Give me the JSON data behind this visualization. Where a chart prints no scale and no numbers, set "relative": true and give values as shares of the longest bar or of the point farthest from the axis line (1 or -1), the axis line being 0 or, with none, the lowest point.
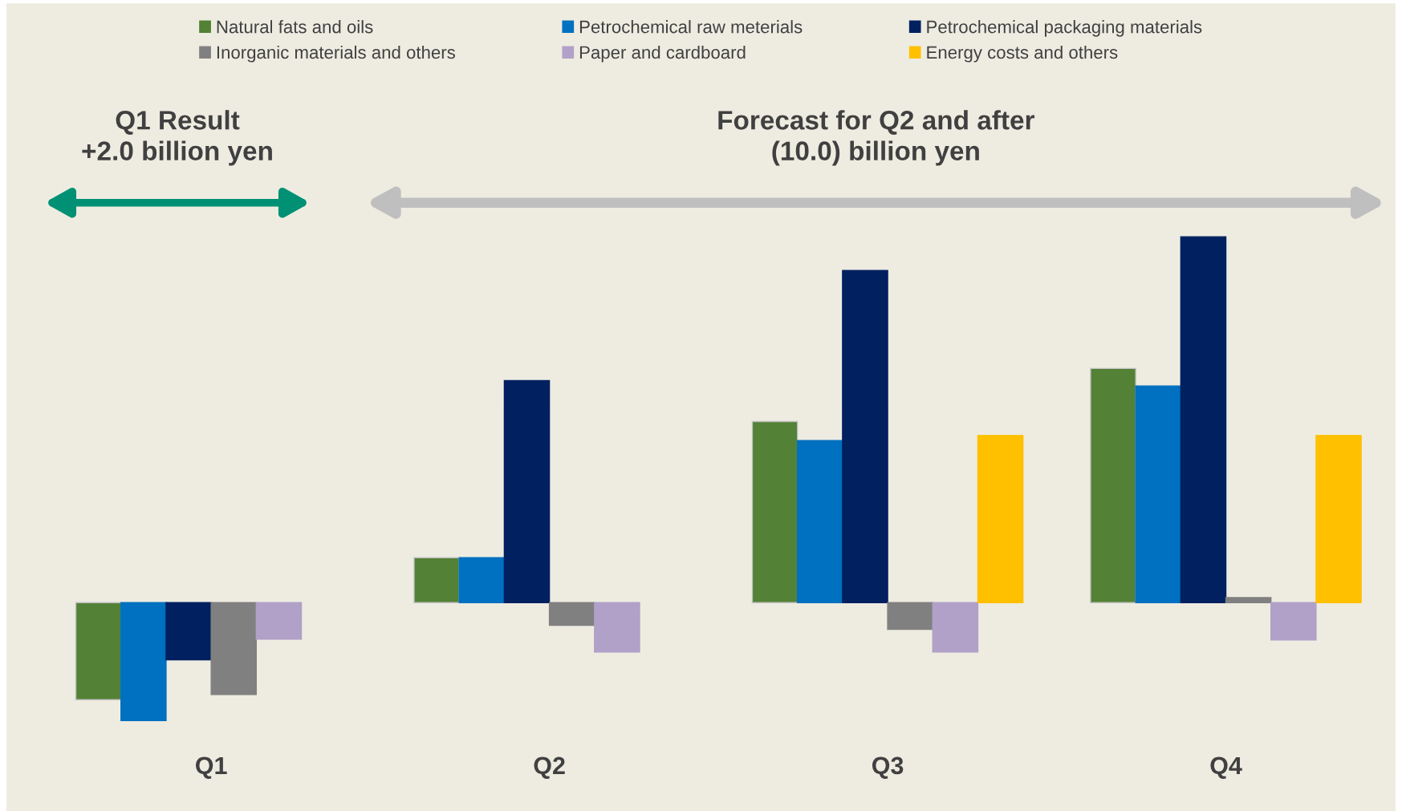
{
  "chart_data": {
    "type": "bar",
    "relative": true,
    "categories": [
      "Q1",
      "Q2",
      "Q3",
      "Q4"
    ],
    "series": [
      {
        "name": "Natural fats and oils",
        "color": "#538135",
        "values": [
          -0.265,
          0.123,
          0.495,
          0.64
        ]
      },
      {
        "name": "Petrochemical raw meterials",
        "color": "#0070c0",
        "values": [
          -0.322,
          0.123,
          0.443,
          0.592
        ]
      },
      {
        "name": "Petrochemical packaging materials",
        "color": "#002060",
        "values": [
          -0.156,
          0.607,
          0.908,
          1
        ]
      },
      {
        "name": "Inorganic materials and others",
        "color": "#808080",
        "values": [
          -0.251,
          -0.062,
          -0.073,
          0.014
        ]
      },
      {
        "name": "Paper and cardboard",
        "color": "#b1a0c7",
        "values": [
          -0.1,
          -0.135,
          -0.135,
          -0.102
        ]
      },
      {
        "name": "Energy costs and others",
        "color": "#ffc000",
        "values": [
          null,
          null,
          0.457,
          0.457
        ]
      }
    ],
    "annotations": [
      "Q1 Result\n+2.0 billion yen",
      "Forecast for Q2 and after\n(10.0) billion yen"
    ],
    "legend": "top",
    "grid": false
  }
}
